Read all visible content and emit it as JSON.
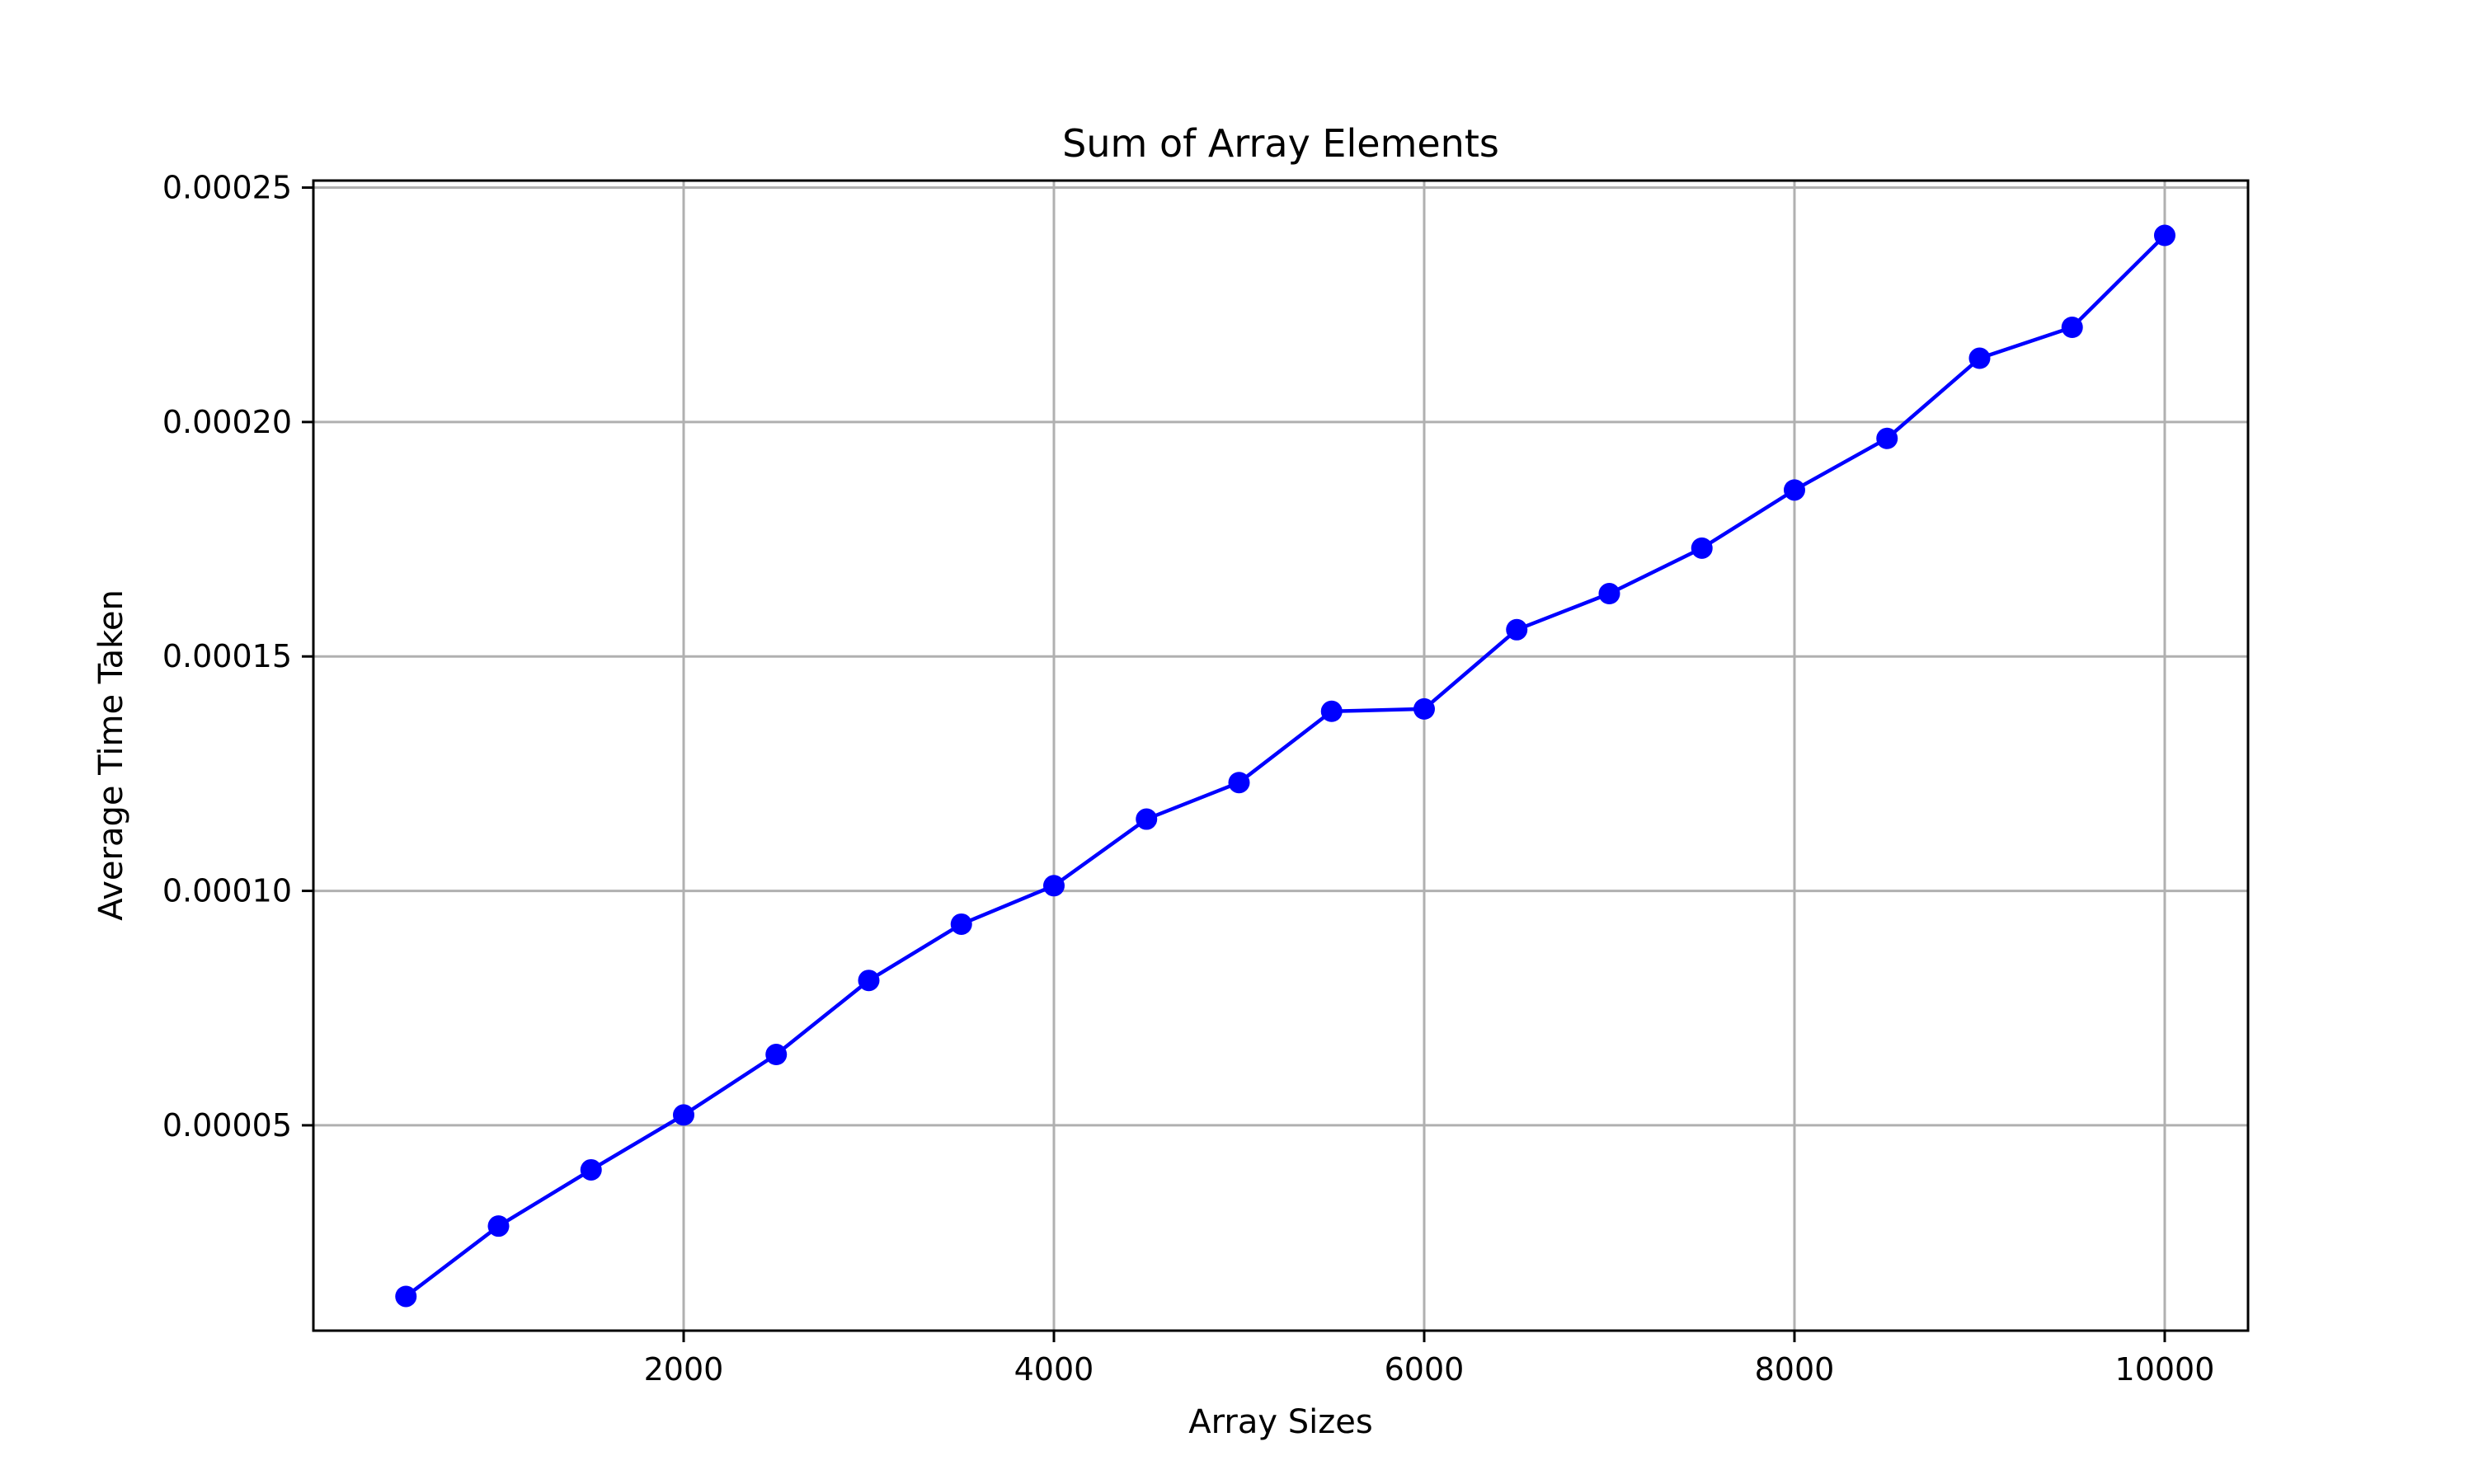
{
  "chart_data": {
    "type": "line",
    "title": "Sum of Array Elements",
    "xlabel": "Array Sizes",
    "ylabel": "Average Time Taken",
    "xlim": [
      0,
      10450
    ],
    "ylim": [
      6.2e-06,
      0.0002515
    ],
    "xticks": [
      2000,
      4000,
      6000,
      8000,
      10000
    ],
    "xtick_labels": [
      "2000",
      "4000",
      "6000",
      "8000",
      "10000"
    ],
    "yticks": [
      5e-05,
      0.0001,
      0.00015,
      0.0002,
      0.00025
    ],
    "ytick_labels": [
      "0.00005",
      "0.00010",
      "0.00015",
      "0.00020",
      "0.00025"
    ],
    "grid": true,
    "color": "#0000ff",
    "x": [
      500,
      1000,
      1500,
      2000,
      2500,
      3000,
      3500,
      4000,
      4500,
      5000,
      5500,
      6000,
      6500,
      7000,
      7500,
      8000,
      8500,
      9000,
      9500,
      10000
    ],
    "y": [
      1.35e-05,
      2.85e-05,
      4.05e-05,
      5.22e-05,
      6.51e-05,
      8.09e-05,
      9.29e-05,
      0.0001011,
      0.0001153,
      0.0001231,
      0.0001383,
      0.0001388,
      0.0001557,
      0.0001634,
      0.0001731,
      0.0001855,
      0.0001965,
      0.0002136,
      0.0002202,
      0.0002398
    ]
  }
}
